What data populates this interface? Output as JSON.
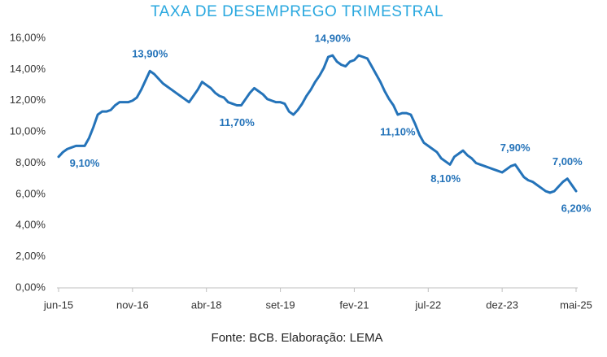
{
  "chart_data": {
    "type": "line",
    "title": "TAXA DE DESEMPREGO TRIMESTRAL",
    "source": "Fonte: BCB. Elaboração: LEMA",
    "categories": [
      "jun-15",
      null,
      null,
      null,
      null,
      null,
      null,
      null,
      null,
      null,
      null,
      null,
      null,
      null,
      null,
      null,
      null,
      "nov-16",
      null,
      null,
      null,
      null,
      null,
      null,
      null,
      null,
      null,
      null,
      null,
      null,
      null,
      null,
      null,
      null,
      "abr-18",
      null,
      null,
      null,
      null,
      null,
      null,
      null,
      null,
      null,
      null,
      null,
      null,
      null,
      null,
      null,
      null,
      "set-19",
      null,
      null,
      null,
      null,
      null,
      null,
      null,
      null,
      null,
      null,
      null,
      null,
      null,
      null,
      null,
      null,
      "fev-21",
      null,
      null,
      null,
      null,
      null,
      null,
      null,
      null,
      null,
      null,
      null,
      null,
      null,
      null,
      null,
      null,
      "jul-22",
      null,
      null,
      null,
      null,
      null,
      null,
      null,
      null,
      null,
      null,
      null,
      null,
      null,
      null,
      null,
      null,
      "dez-23",
      null,
      null,
      null,
      null,
      null,
      null,
      null,
      null,
      null,
      null,
      null,
      null,
      null,
      null,
      null,
      null,
      "mai-25"
    ],
    "series": [
      {
        "color": "#2473b9",
        "values": [
          8.4,
          8.7,
          8.9,
          9.0,
          9.1,
          9.1,
          9.1,
          9.6,
          10.3,
          11.1,
          11.3,
          11.3,
          11.4,
          11.7,
          11.9,
          11.9,
          11.9,
          12.0,
          12.2,
          12.7,
          13.3,
          13.9,
          13.7,
          13.4,
          13.1,
          12.9,
          12.7,
          12.5,
          12.3,
          12.1,
          11.9,
          12.3,
          12.7,
          13.2,
          13.0,
          12.8,
          12.5,
          12.3,
          12.2,
          11.9,
          11.8,
          11.7,
          11.7,
          12.1,
          12.5,
          12.8,
          12.6,
          12.4,
          12.1,
          12.0,
          11.9,
          11.9,
          11.8,
          11.3,
          11.1,
          11.4,
          11.8,
          12.3,
          12.7,
          13.2,
          13.6,
          14.1,
          14.8,
          14.9,
          14.5,
          14.3,
          14.2,
          14.5,
          14.6,
          14.9,
          14.8,
          14.7,
          14.2,
          13.7,
          13.2,
          12.6,
          12.1,
          11.7,
          11.1,
          11.2,
          11.2,
          11.1,
          10.5,
          9.8,
          9.3,
          9.1,
          8.9,
          8.7,
          8.3,
          8.1,
          7.9,
          8.4,
          8.6,
          8.8,
          8.5,
          8.3,
          8.0,
          7.9,
          7.8,
          7.7,
          7.6,
          7.5,
          7.4,
          7.6,
          7.8,
          7.9,
          7.5,
          7.1,
          6.9,
          6.8,
          6.6,
          6.4,
          6.2,
          6.1,
          6.2,
          6.5,
          6.8,
          7.0,
          6.6,
          6.2
        ],
        "value_labels": [
          null,
          null,
          null,
          null,
          null,
          null,
          "9,10%",
          null,
          null,
          null,
          null,
          null,
          null,
          null,
          null,
          null,
          null,
          null,
          null,
          null,
          null,
          "13,90%",
          null,
          null,
          null,
          null,
          null,
          null,
          null,
          null,
          null,
          null,
          null,
          null,
          null,
          null,
          null,
          null,
          null,
          null,
          null,
          "11,70%",
          null,
          null,
          null,
          null,
          null,
          null,
          null,
          null,
          null,
          null,
          null,
          null,
          null,
          null,
          null,
          null,
          null,
          null,
          null,
          null,
          null,
          "14,90%",
          null,
          null,
          null,
          null,
          null,
          null,
          null,
          null,
          null,
          null,
          null,
          null,
          null,
          null,
          "11,10%",
          null,
          null,
          null,
          null,
          null,
          null,
          null,
          null,
          null,
          null,
          "8,10%",
          null,
          null,
          null,
          null,
          null,
          null,
          null,
          null,
          null,
          null,
          null,
          null,
          null,
          null,
          null,
          "7,90%",
          null,
          null,
          null,
          null,
          null,
          null,
          null,
          null,
          null,
          null,
          null,
          "7,00%",
          null,
          "6,20%"
        ]
      }
    ],
    "ylim": [
      0,
      16
    ],
    "yticks": [
      {
        "value": 0,
        "label": "0,00%"
      },
      {
        "value": 2,
        "label": "2,00%"
      },
      {
        "value": 4,
        "label": "4,00%"
      },
      {
        "value": 6,
        "label": "6,00%"
      },
      {
        "value": 8,
        "label": "8,00%"
      },
      {
        "value": 10,
        "label": "10,00%"
      },
      {
        "value": 12,
        "label": "12,00%"
      },
      {
        "value": 14,
        "label": "14,00%"
      },
      {
        "value": 16,
        "label": "16,00%"
      }
    ],
    "grid": false
  }
}
